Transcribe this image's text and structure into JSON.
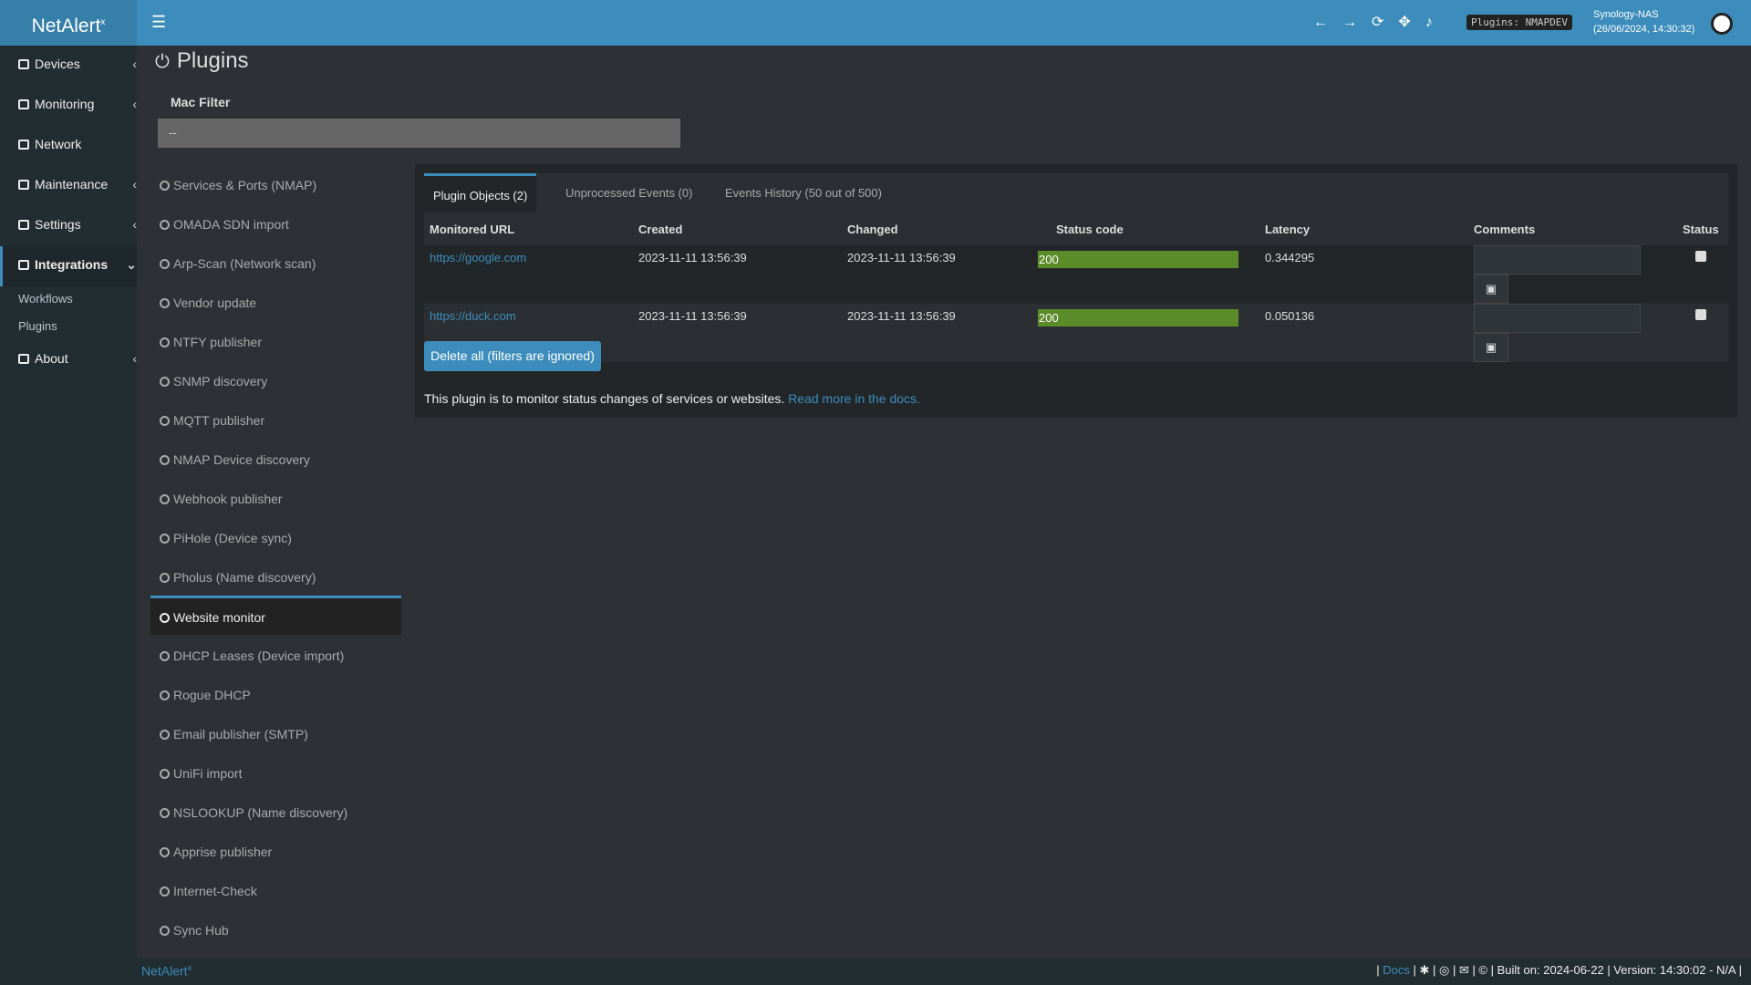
{
  "header": {
    "logo": "NetAlert",
    "logo_sup": "x",
    "plugins_badge": "Plugins: NMAPDEV",
    "host": "Synology-NAS",
    "datetime": "(26/06/2024, 14:30:32)"
  },
  "sidebar": {
    "items": [
      "Devices",
      "Monitoring",
      "Network",
      "Maintenance",
      "Settings",
      "Integrations"
    ],
    "submenu": [
      "Workflows",
      "Plugins"
    ],
    "last": "About"
  },
  "page": {
    "title": "Plugins",
    "mac_filter_label": "Mac Filter",
    "mac_filter_value": "--"
  },
  "plugins": [
    "Services & Ports (NMAP)",
    "OMADA SDN import",
    "Arp-Scan (Network scan)",
    "Vendor update",
    "NTFY publisher",
    "SNMP discovery",
    "MQTT publisher",
    "NMAP Device discovery",
    "Webhook publisher",
    "PiHole (Device sync)",
    "Pholus (Name discovery)",
    "Website monitor",
    "DHCP Leases (Device import)",
    "Rogue DHCP",
    "Email publisher (SMTP)",
    "UniFi import",
    "NSLOOKUP (Name discovery)",
    "Apprise publisher",
    "Internet-Check",
    "Sync Hub"
  ],
  "tabs": [
    "Plugin Objects (2)",
    "Unprocessed Events (0)",
    "Events History (50 out of 500)"
  ],
  "table": {
    "columns": [
      "Monitored URL",
      "Created",
      "Changed",
      "Status code",
      "Latency",
      "Comments",
      "Status"
    ],
    "rows": [
      [
        "https://google.com",
        "2023-11-11 13:56:39",
        "2023-11-11 13:56:39",
        "200",
        "0.344295"
      ],
      [
        "https://duck.com",
        "2023-11-11 13:56:39",
        "2023-11-11 13:56:39",
        "200",
        "0.050136"
      ]
    ]
  },
  "delete_button": "Delete all (filters are ignored)",
  "note": "This plugin is to monitor status changes of services or websites.",
  "note_link": "Read more in the docs.",
  "footer": {
    "brand": "NetAlert",
    "brand_sup": "x",
    "docs": "Docs",
    "build": "Built on: 2024-06-22 | Version: 14:30:02 - N/A |"
  }
}
